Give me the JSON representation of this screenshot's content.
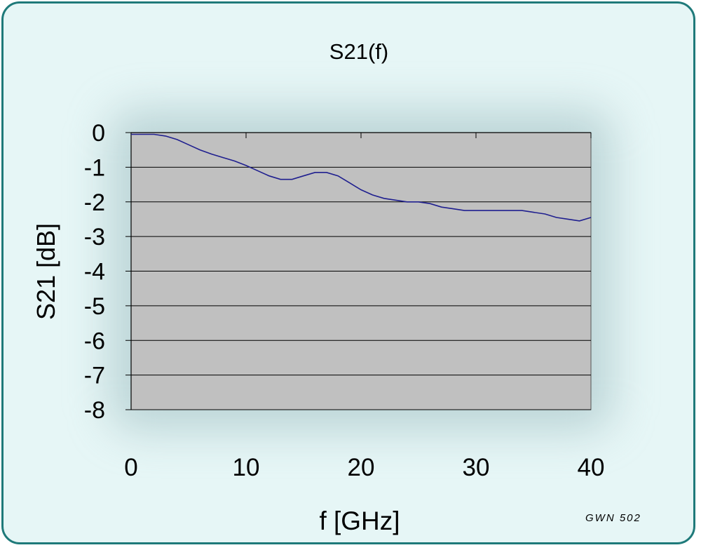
{
  "chart_data": {
    "type": "line",
    "title": "S21(f)",
    "xlabel": "f [GHz]",
    "ylabel": "S21 [dB]",
    "xlim": [
      0,
      40
    ],
    "ylim": [
      -8,
      0
    ],
    "xticks": [
      0,
      10,
      20,
      30,
      40
    ],
    "yticks": [
      0,
      -1,
      -2,
      -3,
      -4,
      -5,
      -6,
      -7,
      -8
    ],
    "grid": "horizontal",
    "plot_background": "#c0c0c0",
    "line_color": "#1f1f8f",
    "series": [
      {
        "x": [
          0,
          1,
          2,
          3,
          4,
          5,
          6,
          7,
          8,
          9,
          10,
          11,
          12,
          13,
          14,
          15,
          16,
          17,
          18,
          19,
          20,
          21,
          22,
          23,
          24,
          25,
          26,
          27,
          28,
          29,
          30,
          31,
          32,
          33,
          34,
          35,
          36,
          37,
          38,
          39,
          40
        ],
        "y": [
          -0.05,
          -0.05,
          -0.05,
          -0.1,
          -0.2,
          -0.35,
          -0.5,
          -0.62,
          -0.72,
          -0.82,
          -0.95,
          -1.1,
          -1.25,
          -1.35,
          -1.35,
          -1.25,
          -1.15,
          -1.15,
          -1.25,
          -1.45,
          -1.65,
          -1.8,
          -1.9,
          -1.95,
          -2.0,
          -2.0,
          -2.05,
          -2.15,
          -2.2,
          -2.25,
          -2.25,
          -2.25,
          -2.25,
          -2.25,
          -2.25,
          -2.3,
          -2.35,
          -2.45,
          -2.5,
          -2.55,
          -2.45
        ]
      }
    ]
  },
  "footer": {
    "note": "GWN 502"
  }
}
